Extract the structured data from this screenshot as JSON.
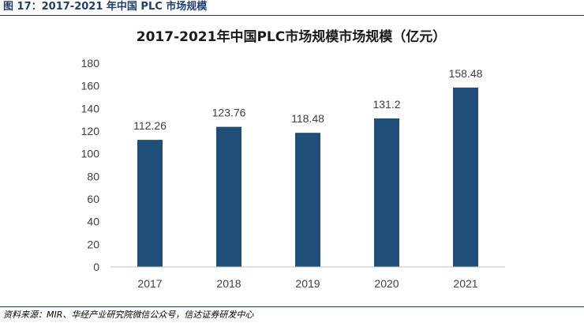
{
  "figure": {
    "caption": "图 17：2017-2021 年中国 PLC 市场规模",
    "source": "资料来源：MIR、华经产业研究院微信公众号，信达证券研发中心"
  },
  "colors": {
    "bar": "#1f4e79",
    "rule": "#1f3d73",
    "text": "#404040"
  },
  "chart_data": {
    "type": "bar",
    "title": "2017-2021年中国PLC市场规模市场规模（亿元）",
    "xlabel": "",
    "ylabel": "",
    "categories": [
      "2017",
      "2018",
      "2019",
      "2020",
      "2021"
    ],
    "values": [
      112.26,
      123.76,
      118.48,
      131.2,
      158.48
    ],
    "value_labels": [
      "112.26",
      "123.76",
      "118.48",
      "131.2",
      "158.48"
    ],
    "ylim": [
      0,
      180
    ],
    "yticks": [
      "0",
      "20",
      "40",
      "60",
      "80",
      "100",
      "120",
      "140",
      "160",
      "180"
    ],
    "grid": false,
    "legend": "none"
  }
}
